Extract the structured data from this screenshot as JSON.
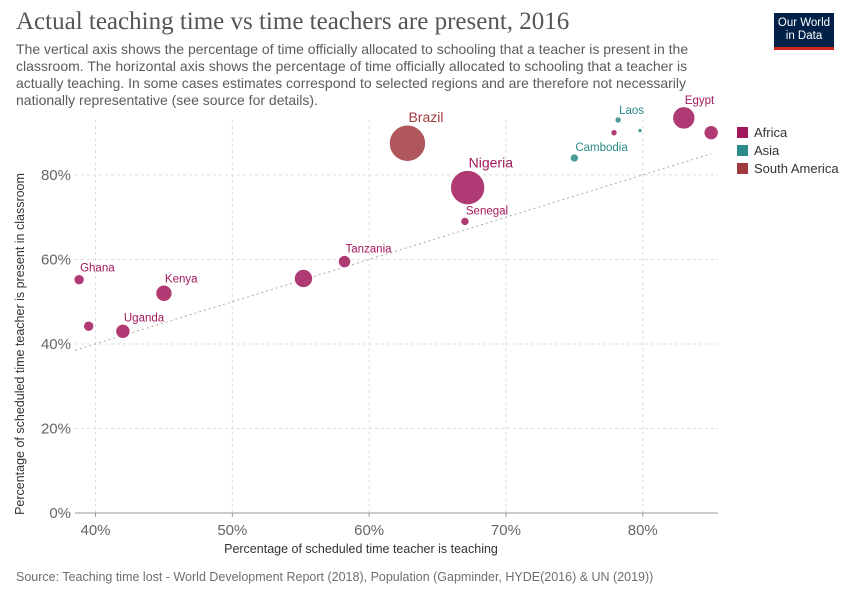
{
  "header": {
    "title": "Actual teaching time vs time teachers are present, 2016",
    "subtitle": "The vertical axis shows the percentage of time officially allocated to schooling that a teacher is present in the classroom. The horizontal axis shows the percentage of time officially allocated to schooling that a teacher is actually teaching. In some cases estimates correspond to selected regions and are therefore not necessarily nationally representative (see source for details).",
    "logo_line1": "Our World",
    "logo_line2": "in Data"
  },
  "footer": {
    "source": "Source: Teaching time lost - World Development Report (2018), Population (Gapminder, HYDE(2016) & UN (2019))"
  },
  "colors": {
    "Africa": "#a2185a",
    "Asia": "#2b8a8a",
    "South America": "#a13a3e"
  },
  "chart_data": {
    "type": "scatter",
    "title": "Actual teaching time vs time teachers are present, 2016",
    "xlabel": "Percentage of scheduled time teacher is teaching",
    "ylabel": "Percentage of scheduled time teacher is present in classroom",
    "xlim": [
      38.5,
      85.5
    ],
    "ylim": [
      0,
      93
    ],
    "x_ticks": [
      40,
      50,
      60,
      70,
      80
    ],
    "x_tick_labels": [
      "40%",
      "50%",
      "60%",
      "70%",
      "80%"
    ],
    "y_ticks": [
      0,
      20,
      40,
      60,
      80
    ],
    "y_tick_labels": [
      "0%",
      "20%",
      "40%",
      "60%",
      "80%"
    ],
    "grid": true,
    "diagonal_reference_line": true,
    "legend": {
      "placement": "right",
      "entries": [
        "Africa",
        "Asia",
        "South America"
      ]
    },
    "points": [
      {
        "label": "Ghana",
        "x": 38.8,
        "y": 55.2,
        "region": "Africa",
        "size": 5
      },
      {
        "label": "",
        "x": 39.5,
        "y": 44.2,
        "region": "Africa",
        "size": 5
      },
      {
        "label": "Uganda",
        "x": 42.0,
        "y": 43.0,
        "region": "Africa",
        "size": 7
      },
      {
        "label": "Kenya",
        "x": 45.0,
        "y": 52.0,
        "region": "Africa",
        "size": 8
      },
      {
        "label": "",
        "x": 55.2,
        "y": 55.5,
        "region": "Africa",
        "size": 9
      },
      {
        "label": "Tanzania",
        "x": 58.2,
        "y": 59.5,
        "region": "Africa",
        "size": 6
      },
      {
        "label": "Brazil",
        "x": 62.8,
        "y": 87.5,
        "region": "South America",
        "size": 18
      },
      {
        "label": "Nigeria",
        "x": 67.2,
        "y": 77.0,
        "region": "Africa",
        "size": 17
      },
      {
        "label": "Senegal",
        "x": 67.0,
        "y": 69.0,
        "region": "Africa",
        "size": 4
      },
      {
        "label": "Cambodia",
        "x": 75.0,
        "y": 84.0,
        "region": "Asia",
        "size": 4
      },
      {
        "label": "",
        "x": 77.9,
        "y": 90.0,
        "region": "Africa",
        "size": 3
      },
      {
        "label": "Laos",
        "x": 78.2,
        "y": 93.0,
        "region": "Asia",
        "size": 3
      },
      {
        "label": "",
        "x": 79.8,
        "y": 90.5,
        "region": "Asia",
        "size": 2
      },
      {
        "label": "Egypt",
        "x": 83.0,
        "y": 93.5,
        "region": "Africa",
        "size": 11
      },
      {
        "label": "",
        "x": 85.0,
        "y": 90.0,
        "region": "Africa",
        "size": 7
      }
    ]
  }
}
